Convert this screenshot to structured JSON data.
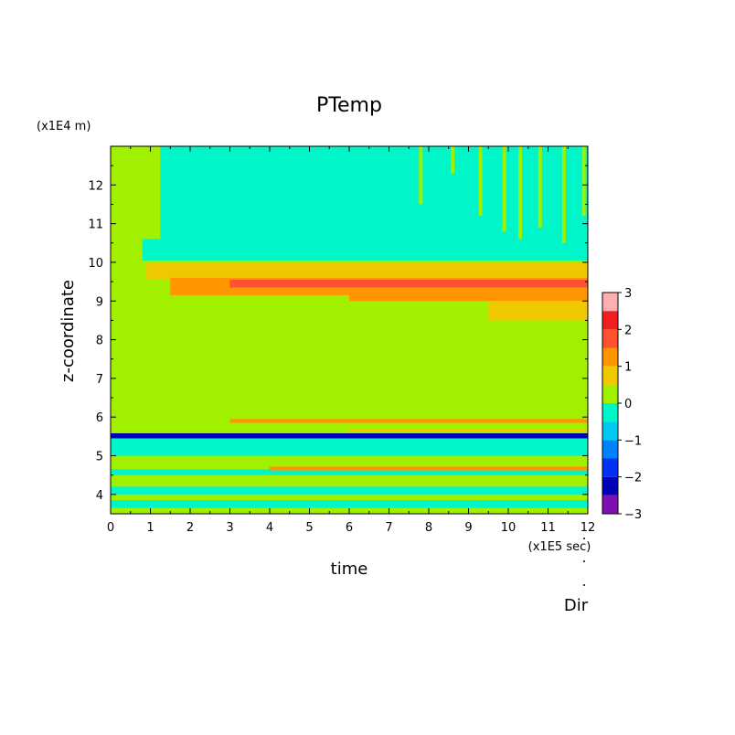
{
  "chart_data": {
    "type": "heatmap",
    "title": "PTemp",
    "xlabel": "time",
    "ylabel": "z-coordinate",
    "x_unit": "(x1E5 sec)",
    "y_unit": "(x1E4 m)",
    "xlim": [
      0,
      12
    ],
    "ylim": [
      3.5,
      13
    ],
    "x_ticks": [
      "0",
      "1",
      "2",
      "3",
      "4",
      "5",
      "6",
      "7",
      "8",
      "9",
      "10",
      "11",
      "12"
    ],
    "y_ticks": [
      "4",
      "5",
      "6",
      "7",
      "8",
      "9",
      "10",
      "11",
      "12"
    ],
    "colorbar": {
      "levels": [
        -3,
        -2.5,
        -2,
        -1.5,
        -1,
        -0.5,
        0,
        0.5,
        1,
        1.5,
        2,
        2.5,
        3
      ],
      "tick_labels": [
        "3",
        "2",
        "1",
        "0",
        "−1",
        "−2",
        "−3"
      ],
      "colors": [
        "#7f0fb0",
        "#0000b4",
        "#0032f0",
        "#0082ff",
        "#00c8f0",
        "#00f5c8",
        "#a0f000",
        "#f0c800",
        "#ff9600",
        "#ff5030",
        "#f02020",
        "#ffafaf"
      ]
    },
    "regions": [
      {
        "x0": 0,
        "x1": 12,
        "y0": 3.5,
        "y1": 13,
        "value": 0.2
      },
      {
        "x0": 1.25,
        "x1": 12,
        "y0": 10.05,
        "y1": 13,
        "value": -0.2
      },
      {
        "x0": 0.8,
        "x1": 1.25,
        "y0": 10.05,
        "y1": 10.6,
        "value": -0.2
      },
      {
        "x0": 0.9,
        "x1": 12,
        "y0": 9.55,
        "y1": 10.0,
        "value": 0.7
      },
      {
        "x0": 1.5,
        "x1": 12,
        "y0": 9.15,
        "y1": 9.6,
        "value": 1.2
      },
      {
        "x0": 3.0,
        "x1": 12,
        "y0": 9.35,
        "y1": 9.55,
        "value": 1.8
      },
      {
        "x0": 6.0,
        "x1": 12,
        "y0": 9.0,
        "y1": 9.2,
        "value": 1.2
      },
      {
        "x0": 9.5,
        "x1": 12,
        "y0": 8.5,
        "y1": 9.0,
        "value": 0.7
      },
      {
        "x0": 0,
        "x1": 12,
        "y0": 5.0,
        "y1": 5.55,
        "value": -0.2
      },
      {
        "x0": 0,
        "x1": 12,
        "y0": 5.45,
        "y1": 5.58,
        "value": -2.2
      },
      {
        "x0": 3.0,
        "x1": 12,
        "y0": 5.85,
        "y1": 5.95,
        "value": 1.2
      },
      {
        "x0": 6.0,
        "x1": 12,
        "y0": 5.62,
        "y1": 5.7,
        "value": 0.7
      },
      {
        "x0": 0,
        "x1": 12,
        "y0": 4.5,
        "y1": 4.65,
        "value": -0.2
      },
      {
        "x0": 4.0,
        "x1": 12,
        "y0": 4.62,
        "y1": 4.72,
        "value": 1.2
      },
      {
        "x0": 0,
        "x1": 12,
        "y0": 4.0,
        "y1": 4.2,
        "value": -0.2
      },
      {
        "x0": 0,
        "x1": 12,
        "y0": 3.65,
        "y1": 3.85,
        "value": -0.2
      }
    ],
    "upper_spikes": [
      {
        "x": 7.8,
        "bottom": 11.5,
        "value": 0.2
      },
      {
        "x": 8.6,
        "bottom": 12.3,
        "value": 0.2
      },
      {
        "x": 9.3,
        "bottom": 11.2,
        "value": 0.2
      },
      {
        "x": 9.9,
        "bottom": 10.8,
        "value": 0.2
      },
      {
        "x": 10.3,
        "bottom": 10.6,
        "value": 0.2
      },
      {
        "x": 10.8,
        "bottom": 10.9,
        "value": 0.2
      },
      {
        "x": 11.4,
        "bottom": 10.5,
        "value": 0.2
      },
      {
        "x": 11.9,
        "bottom": 11.2,
        "value": 0.2
      }
    ]
  },
  "footer": {
    "dir_label": "Dir"
  }
}
